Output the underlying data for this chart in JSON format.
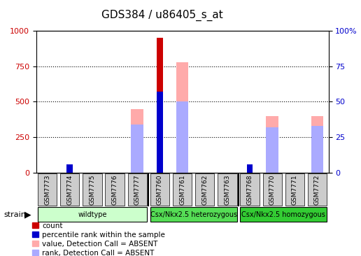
{
  "title": "GDS384 / u86405_s_at",
  "samples": [
    "GSM7773",
    "GSM7774",
    "GSM7775",
    "GSM7776",
    "GSM7777",
    "GSM7760",
    "GSM7761",
    "GSM7762",
    "GSM7763",
    "GSM7768",
    "GSM7770",
    "GSM7771",
    "GSM7772"
  ],
  "groups": [
    {
      "label": "wildtype",
      "indices": [
        0,
        1,
        2,
        3,
        4
      ],
      "color": "#ccffcc"
    },
    {
      "label": "Csx/Nkx2.5 heterozygous",
      "indices": [
        5,
        6,
        7,
        8
      ],
      "color": "#55dd55"
    },
    {
      "label": "Csx/Nkx2.5 homozygous",
      "indices": [
        9,
        10,
        11,
        12
      ],
      "color": "#33cc33"
    }
  ],
  "count_values": [
    0,
    0,
    0,
    0,
    0,
    950,
    0,
    0,
    0,
    0,
    0,
    0,
    0
  ],
  "percentile_values": [
    0,
    60,
    0,
    0,
    0,
    570,
    0,
    0,
    0,
    60,
    0,
    0,
    0
  ],
  "absent_value_values": [
    0,
    0,
    0,
    0,
    450,
    0,
    780,
    0,
    0,
    0,
    400,
    0,
    400
  ],
  "absent_rank_values": [
    0,
    0,
    0,
    0,
    340,
    0,
    500,
    0,
    0,
    0,
    320,
    0,
    330
  ],
  "ylim_left": [
    0,
    1000
  ],
  "ylim_right": [
    0,
    100
  ],
  "yticks_left": [
    0,
    250,
    500,
    750,
    1000
  ],
  "yticks_right": [
    0,
    25,
    50,
    75,
    100
  ],
  "count_color": "#cc0000",
  "percentile_color": "#0000cc",
  "absent_value_color": "#ffaaaa",
  "absent_rank_color": "#aaaaff",
  "bg_color": "#ffffff",
  "left_tick_color": "#cc0000",
  "right_tick_color": "#0000cc",
  "grid_color": "#000000",
  "sample_box_color": "#cccccc",
  "bar_width": 0.55
}
